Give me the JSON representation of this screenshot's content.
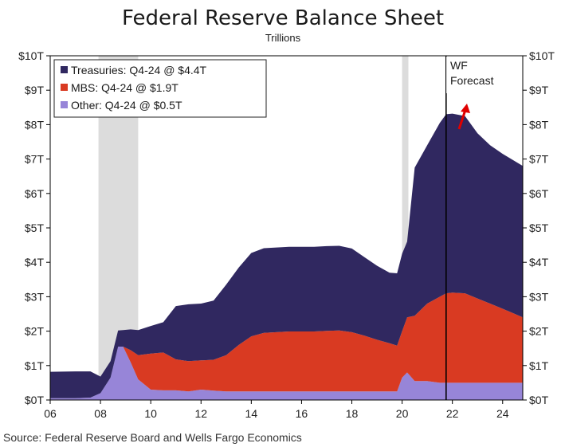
{
  "chart_data": {
    "type": "area",
    "stacked": true,
    "title": "Federal Reserve Balance Sheet",
    "subtitle": "Trillions",
    "source": "Source: Federal Reserve Board and Wells Fargo Economics",
    "x_ticks": [
      "06",
      "08",
      "10",
      "12",
      "14",
      "16",
      "18",
      "20",
      "22",
      "24"
    ],
    "x_tick_values": [
      2006,
      2008,
      2010,
      2012,
      2014,
      2016,
      2018,
      2020,
      2022,
      2024
    ],
    "xlim": [
      2006,
      2024.8
    ],
    "y_ticks": [
      "$0T",
      "$1T",
      "$2T",
      "$3T",
      "$4T",
      "$5T",
      "$6T",
      "$7T",
      "$8T",
      "$9T",
      "$10T"
    ],
    "ylim": [
      0,
      10
    ],
    "grid": false,
    "legend_placement": "top-left",
    "recession_bands": [
      [
        2007.92,
        2009.5
      ],
      [
        2020.0,
        2020.25
      ]
    ],
    "forecast_start": 2021.75,
    "annotation": "WF Forecast",
    "x": [
      2006.0,
      2007.0,
      2007.6,
      2008.0,
      2008.4,
      2008.7,
      2008.9,
      2009.2,
      2009.5,
      2010.0,
      2010.5,
      2011.0,
      2011.5,
      2012.0,
      2012.5,
      2013.0,
      2013.5,
      2014.0,
      2014.5,
      2015.0,
      2015.5,
      2016.0,
      2016.5,
      2017.0,
      2017.5,
      2018.0,
      2018.5,
      2019.0,
      2019.5,
      2019.8,
      2020.0,
      2020.2,
      2020.5,
      2021.0,
      2021.5,
      2021.75,
      2022.0,
      2022.5,
      2023.0,
      2023.5,
      2024.0,
      2024.8
    ],
    "series": [
      {
        "name": "Treasuries",
        "legend": "Treasuries: Q4-24 @ $4.4T",
        "color": "#302860",
        "values": [
          0.77,
          0.78,
          0.76,
          0.48,
          0.48,
          0.47,
          0.48,
          0.6,
          0.73,
          0.8,
          0.88,
          1.55,
          1.65,
          1.65,
          1.72,
          2.05,
          2.25,
          2.42,
          2.46,
          2.46,
          2.46,
          2.46,
          2.46,
          2.46,
          2.46,
          2.43,
          2.28,
          2.15,
          2.05,
          2.1,
          2.25,
          2.2,
          4.3,
          4.6,
          5.05,
          5.2,
          5.2,
          5.15,
          4.8,
          4.6,
          4.5,
          4.4
        ]
      },
      {
        "name": "MBS",
        "legend": "MBS: Q4-24 @ $1.9T",
        "color": "#d93a22",
        "values": [
          0.0,
          0.0,
          0.0,
          0.0,
          0.0,
          0.0,
          0.0,
          0.35,
          0.7,
          1.05,
          1.1,
          0.9,
          0.88,
          0.85,
          0.9,
          1.05,
          1.35,
          1.6,
          1.7,
          1.72,
          1.74,
          1.74,
          1.74,
          1.76,
          1.77,
          1.72,
          1.62,
          1.5,
          1.4,
          1.33,
          1.35,
          1.6,
          1.9,
          2.25,
          2.5,
          2.6,
          2.62,
          2.6,
          2.45,
          2.3,
          2.15,
          1.9
        ]
      },
      {
        "name": "Other",
        "legend": "Other: Q4-24 @ $0.5T",
        "color": "#9785d8",
        "values": [
          0.05,
          0.05,
          0.07,
          0.2,
          0.65,
          1.55,
          1.55,
          1.1,
          0.6,
          0.3,
          0.28,
          0.28,
          0.25,
          0.3,
          0.27,
          0.25,
          0.25,
          0.25,
          0.25,
          0.25,
          0.25,
          0.25,
          0.25,
          0.25,
          0.25,
          0.25,
          0.25,
          0.25,
          0.25,
          0.25,
          0.65,
          0.8,
          0.55,
          0.55,
          0.5,
          0.5,
          0.5,
          0.5,
          0.5,
          0.5,
          0.5,
          0.5
        ]
      }
    ]
  }
}
